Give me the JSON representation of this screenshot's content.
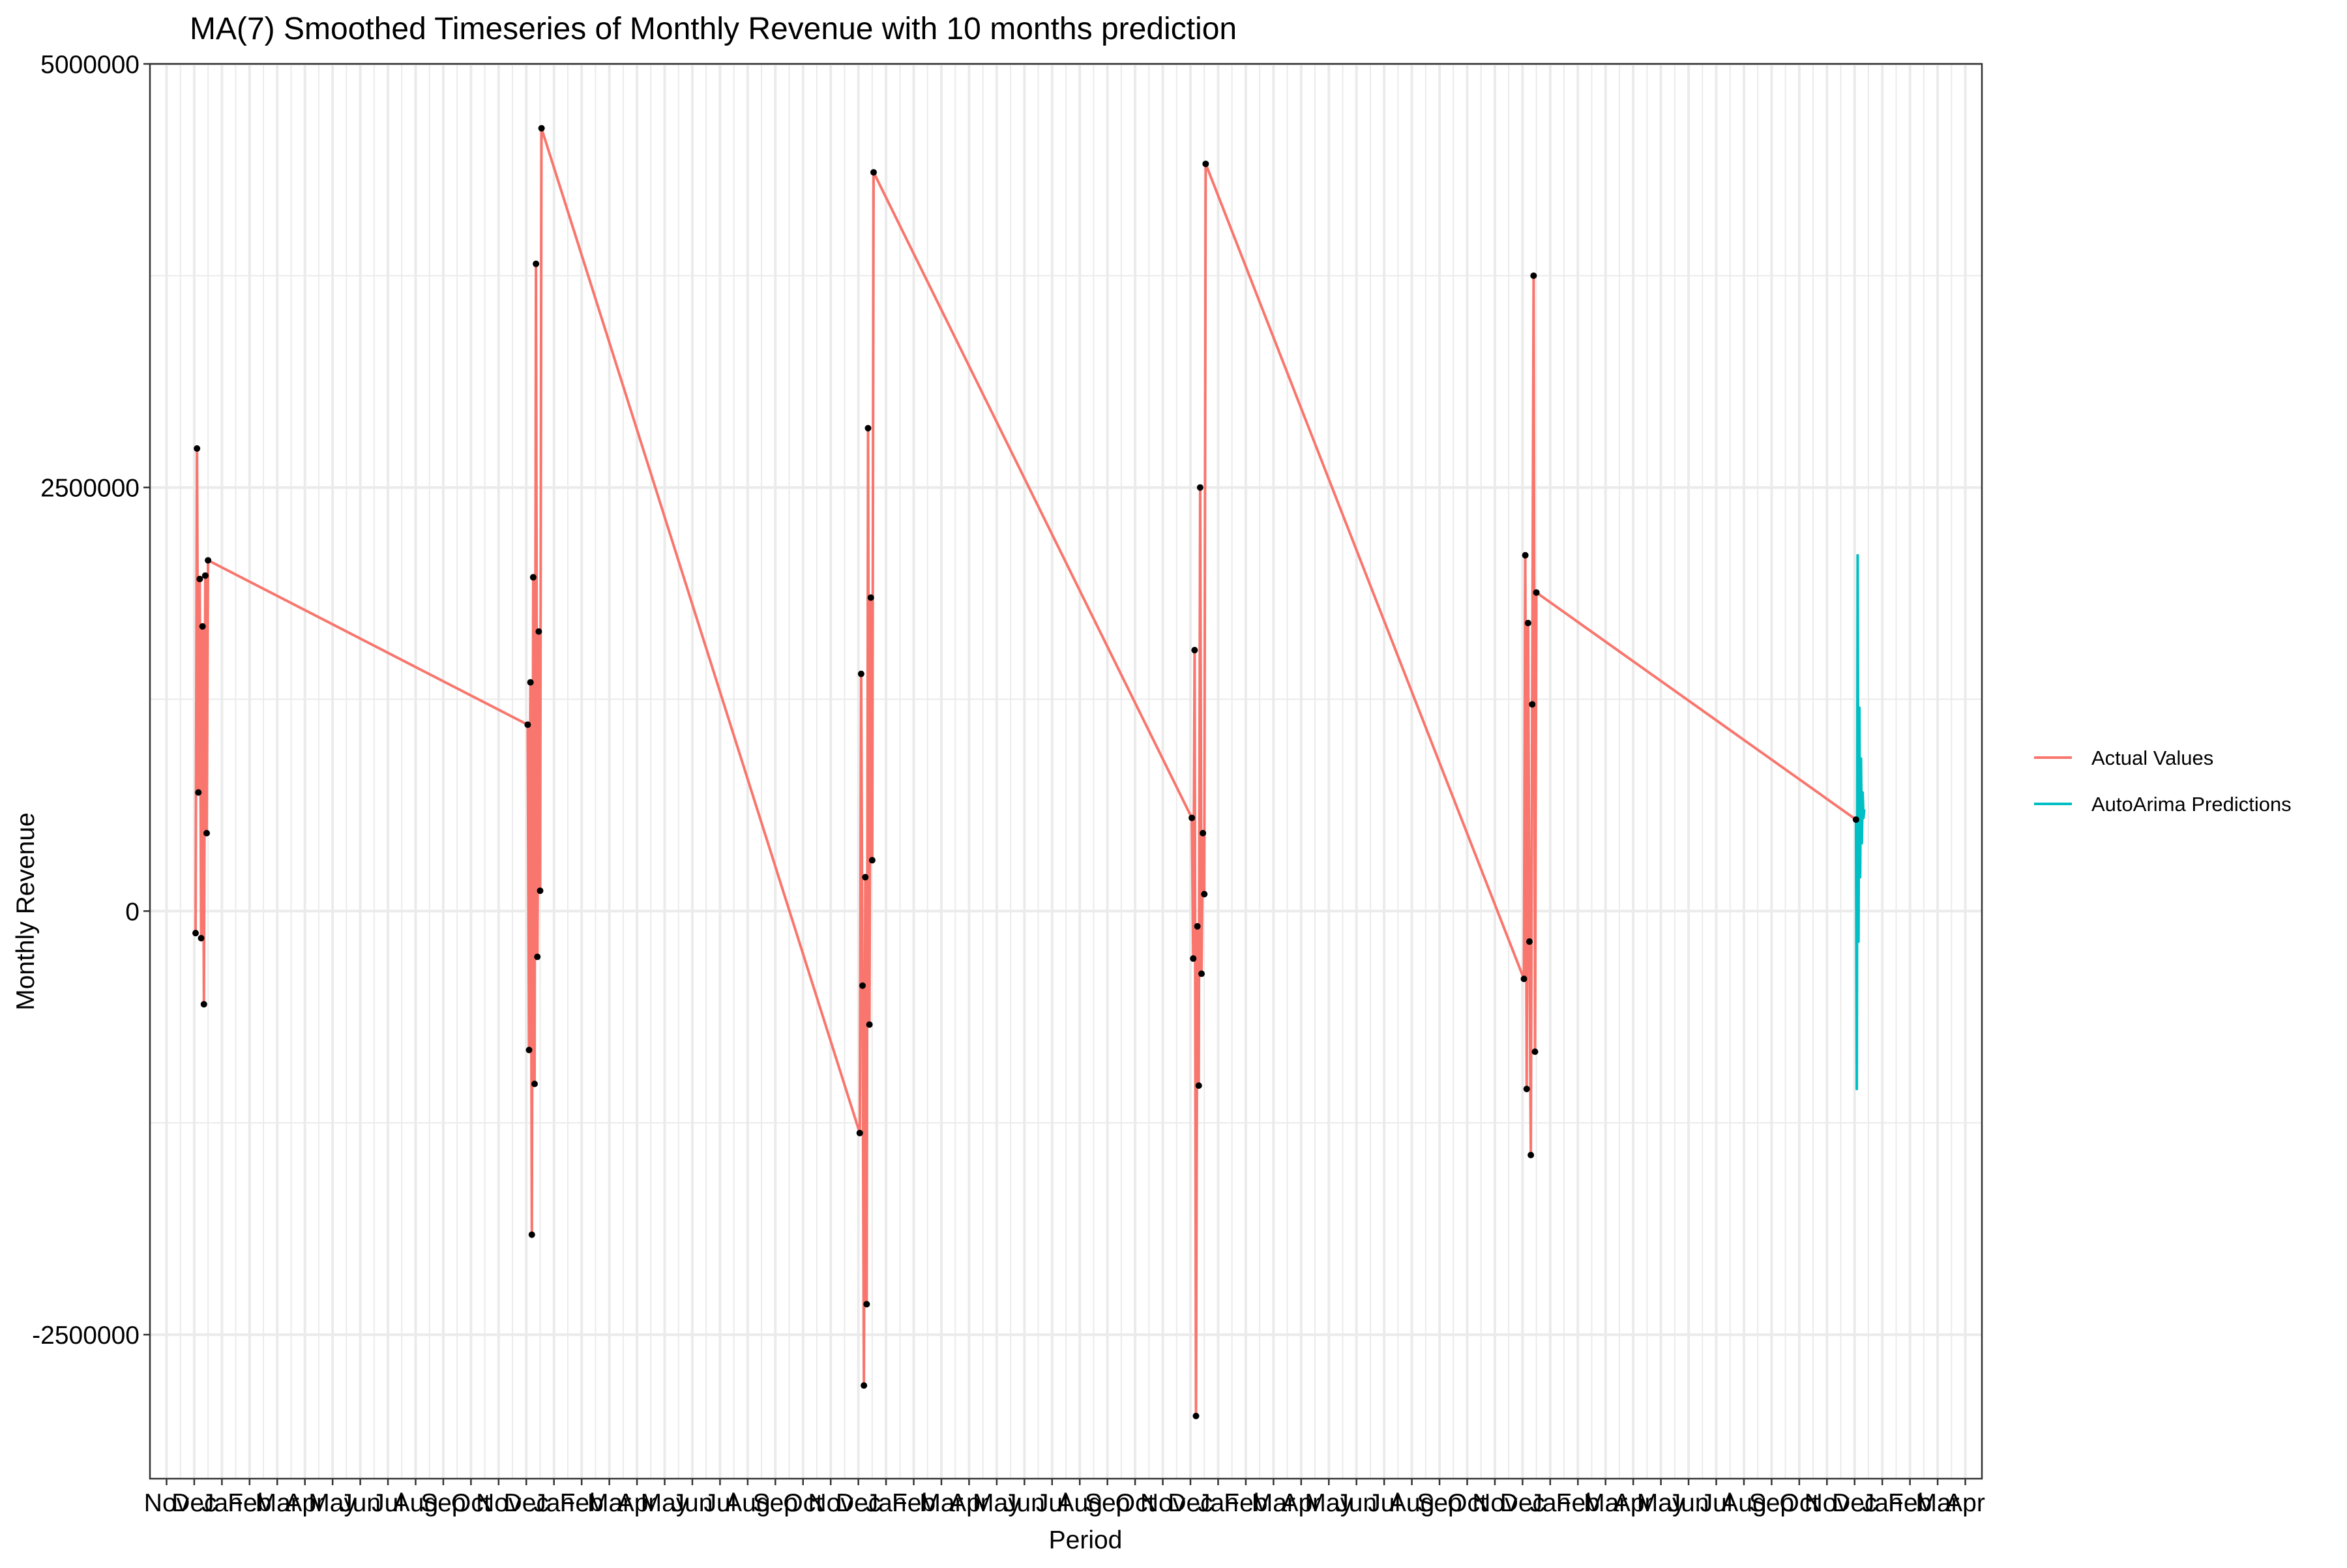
{
  "chart_data": {
    "type": "line",
    "title": "MA(7) Smoothed Timeseries of Monthly Revenue with 10 months prediction",
    "xlabel": "Period",
    "ylabel": "Monthly Revenue",
    "ylim": [
      -3350000,
      5000000
    ],
    "y_ticks": [
      5000000,
      2500000,
      0,
      -2500000
    ],
    "y_tick_labels": [
      "5000000",
      "2500000",
      "0",
      "-2500000"
    ],
    "x_tick_labels": [
      "Nov",
      "Dec",
      "Jan",
      "Feb",
      "Mar",
      "Apr",
      "May",
      "Jun",
      "Jul",
      "Aug",
      "Sep",
      "Oct",
      "Nov",
      "Dec",
      "Jan",
      "Feb",
      "Mar",
      "Apr",
      "May",
      "Jun",
      "Jul",
      "Aug",
      "Sep",
      "Oct",
      "Nov",
      "Dec",
      "Jan",
      "Feb",
      "Mar",
      "Apr",
      "May",
      "Jun",
      "Jul",
      "Aug",
      "Sep",
      "Oct",
      "Nov",
      "Dec",
      "Jan",
      "Feb",
      "Mar",
      "Apr",
      "May",
      "Jun",
      "Jul",
      "Aug",
      "Sep",
      "Oct",
      "Nov",
      "Dec",
      "Jan",
      "Feb",
      "Mar",
      "Apr",
      "May",
      "Jun",
      "Jul",
      "Aug",
      "Sep",
      "Oct",
      "Nov",
      "Dec",
      "Jan",
      "Feb",
      "Mar",
      "Apr"
    ],
    "grid": true,
    "legend_position": "right",
    "series": [
      {
        "name": "Actual Values",
        "color": "#F8766D",
        "points": [
          {
            "x": 2.05,
            "y": -130000
          },
          {
            "x": 2.1,
            "y": 2730000
          },
          {
            "x": 2.15,
            "y": 700000
          },
          {
            "x": 2.2,
            "y": 1960000
          },
          {
            "x": 2.25,
            "y": -160000
          },
          {
            "x": 2.3,
            "y": 1680000
          },
          {
            "x": 2.35,
            "y": -550000
          },
          {
            "x": 2.4,
            "y": 1980000
          },
          {
            "x": 2.45,
            "y": 460000
          },
          {
            "x": 2.5,
            "y": 2070000
          },
          {
            "x": 14.05,
            "y": 1100000
          },
          {
            "x": 14.1,
            "y": -820000
          },
          {
            "x": 14.15,
            "y": 1350000
          },
          {
            "x": 14.2,
            "y": -1910000
          },
          {
            "x": 14.25,
            "y": 1970000
          },
          {
            "x": 14.3,
            "y": -1020000
          },
          {
            "x": 14.35,
            "y": 3820000
          },
          {
            "x": 14.4,
            "y": -270000
          },
          {
            "x": 14.45,
            "y": 1650000
          },
          {
            "x": 14.5,
            "y": 120000
          },
          {
            "x": 14.55,
            "y": 4620000
          },
          {
            "x": 26.05,
            "y": -1310000
          },
          {
            "x": 26.1,
            "y": 1400000
          },
          {
            "x": 26.15,
            "y": -440000
          },
          {
            "x": 26.2,
            "y": -2800000
          },
          {
            "x": 26.25,
            "y": 200000
          },
          {
            "x": 26.3,
            "y": -2320000
          },
          {
            "x": 26.35,
            "y": 2850000
          },
          {
            "x": 26.4,
            "y": -670000
          },
          {
            "x": 26.45,
            "y": 1850000
          },
          {
            "x": 26.5,
            "y": 300000
          },
          {
            "x": 26.55,
            "y": 4360000
          },
          {
            "x": 38.05,
            "y": 550000
          },
          {
            "x": 38.1,
            "y": -280000
          },
          {
            "x": 38.15,
            "y": 1540000
          },
          {
            "x": 38.2,
            "y": -2980000
          },
          {
            "x": 38.25,
            "y": -90000
          },
          {
            "x": 38.3,
            "y": -1030000
          },
          {
            "x": 38.35,
            "y": 2500000
          },
          {
            "x": 38.4,
            "y": -370000
          },
          {
            "x": 38.45,
            "y": 460000
          },
          {
            "x": 38.5,
            "y": 100000
          },
          {
            "x": 38.55,
            "y": 4410000
          },
          {
            "x": 50.05,
            "y": -400000
          },
          {
            "x": 50.1,
            "y": 2100000
          },
          {
            "x": 50.15,
            "y": -1050000
          },
          {
            "x": 50.2,
            "y": 1700000
          },
          {
            "x": 50.25,
            "y": -180000
          },
          {
            "x": 50.3,
            "y": -1440000
          },
          {
            "x": 50.35,
            "y": 1220000
          },
          {
            "x": 50.4,
            "y": 3750000
          },
          {
            "x": 50.45,
            "y": -830000
          },
          {
            "x": 50.5,
            "y": 1880000
          },
          {
            "x": 62.05,
            "y": 540000
          }
        ]
      },
      {
        "name": "AutoArima Predictions",
        "color": "#00BFC4",
        "points": [
          {
            "x": 62.05,
            "y": 540000
          },
          {
            "x": 62.08,
            "y": -1050000
          },
          {
            "x": 62.11,
            "y": 2100000
          },
          {
            "x": 62.14,
            "y": -180000
          },
          {
            "x": 62.17,
            "y": 1200000
          },
          {
            "x": 62.2,
            "y": 200000
          },
          {
            "x": 62.23,
            "y": 900000
          },
          {
            "x": 62.26,
            "y": 400000
          },
          {
            "x": 62.29,
            "y": 700000
          },
          {
            "x": 62.32,
            "y": 550000
          },
          {
            "x": 62.35,
            "y": 600000
          }
        ]
      }
    ]
  }
}
